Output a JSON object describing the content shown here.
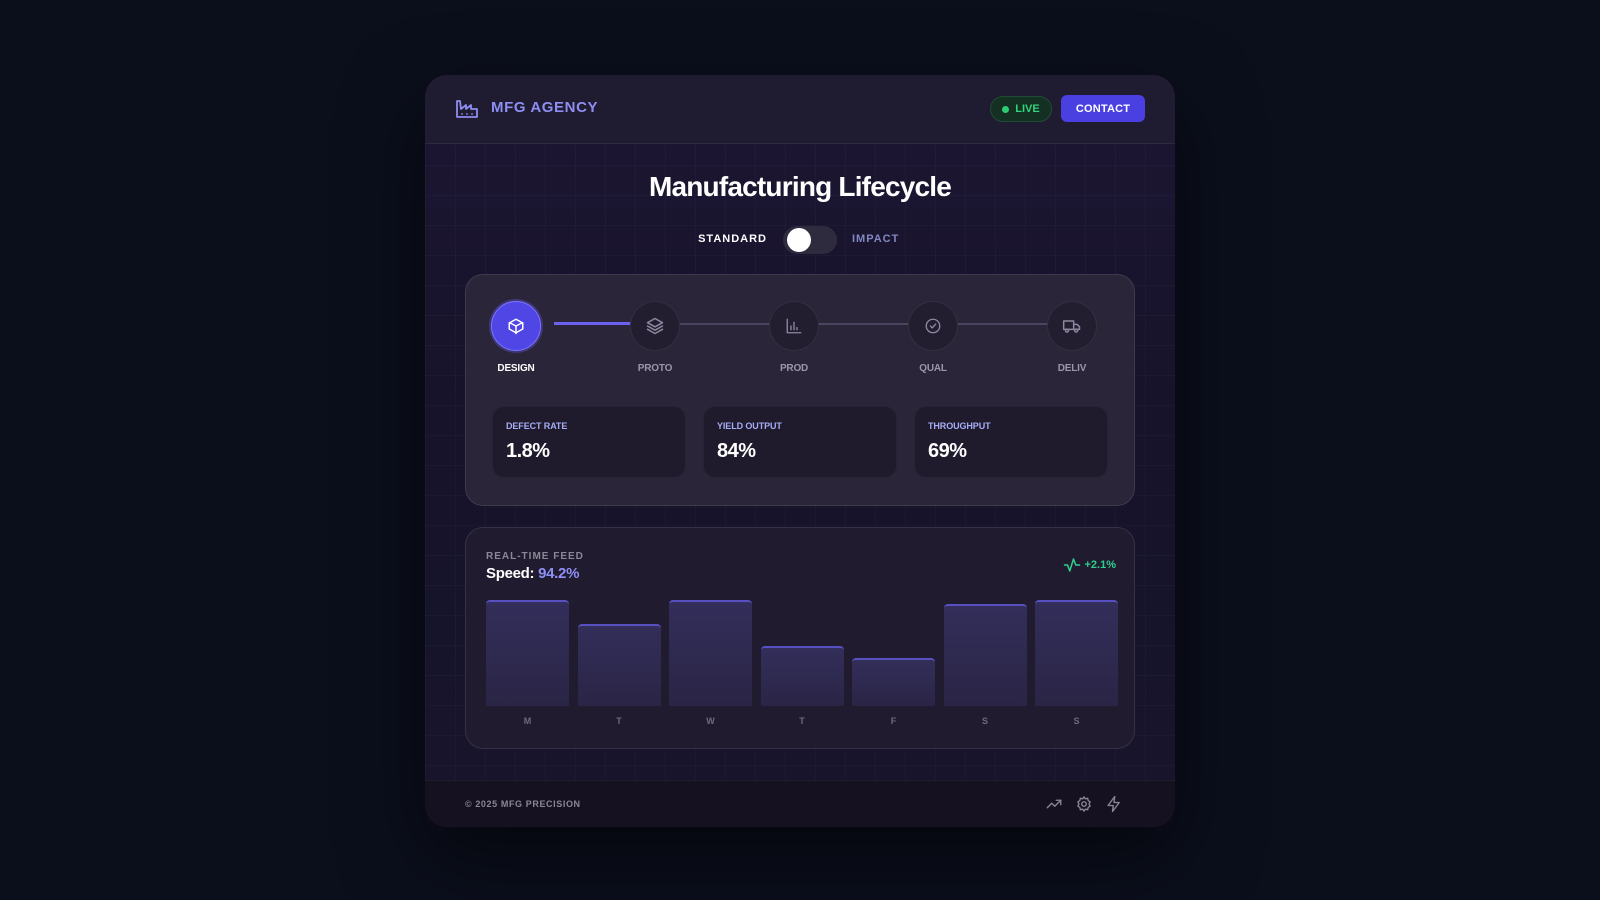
{
  "header": {
    "brand": "MFG AGENCY",
    "live_label": "LIVE",
    "contact_label": "CONTACT"
  },
  "hero": {
    "title": "Manufacturing Lifecycle",
    "toggle": {
      "left_label": "STANDARD",
      "right_label": "IMPACT",
      "state": "standard"
    }
  },
  "lifecycle": {
    "progress": 0.25,
    "steps": [
      {
        "label": "DESIGN",
        "icon": "cube-icon",
        "active": true
      },
      {
        "label": "PROTO",
        "icon": "layers-icon",
        "active": false
      },
      {
        "label": "PROD",
        "icon": "bar-chart-icon",
        "active": false
      },
      {
        "label": "QUAL",
        "icon": "check-circle-icon",
        "active": false
      },
      {
        "label": "DELIV",
        "icon": "truck-icon",
        "active": false
      }
    ]
  },
  "metrics": [
    {
      "label": "DEFECT RATE",
      "value": "1.8%"
    },
    {
      "label": "YIELD OUTPUT",
      "value": "84%"
    },
    {
      "label": "THROUGHPUT",
      "value": "69%"
    }
  ],
  "feed": {
    "label": "REAL-TIME FEED",
    "speed_label": "Speed:",
    "speed_value": "94.2%",
    "trend": "+2.1%",
    "trend_icon": "activity-icon"
  },
  "chart_data": {
    "type": "bar",
    "categories": [
      "M",
      "T",
      "W",
      "T",
      "F",
      "S",
      "S"
    ],
    "values": [
      100,
      77,
      100,
      57,
      45,
      96,
      100
    ],
    "ylim": [
      0,
      100
    ]
  },
  "footer": {
    "copyright": "© 2025 MFG PRECISION",
    "icons": [
      "trending-up-icon",
      "settings-icon",
      "zap-icon"
    ]
  },
  "colors": {
    "accent": "#4f46e5",
    "live_green": "#34d27a",
    "trend_green": "#2fcf8f",
    "background": "#0b0f1c"
  }
}
